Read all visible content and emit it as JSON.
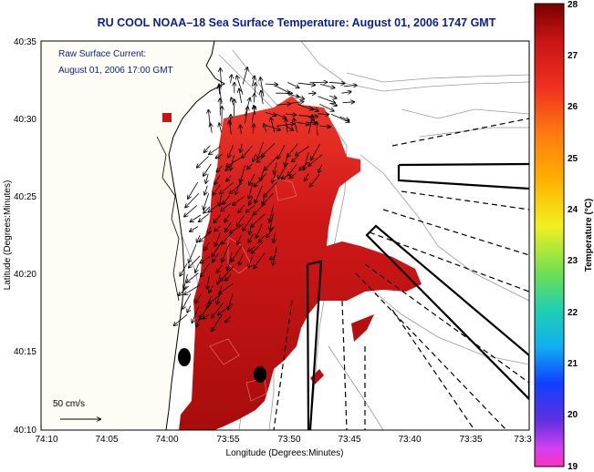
{
  "title": "RU COOL  NOAA–18  Sea Surface Temperature:  August 01, 2006 1747 GMT",
  "current_label_line1": "Raw Surface Current:",
  "current_label_line2": "August 01, 2006 17:00 GMT",
  "scale_label": "50 cm/s",
  "x_axis_label": "Longitude (Degrees:Minutes)",
  "y_axis_label": "Latitude (Degrees:Minutes)",
  "x_ticks": [
    "74:10",
    "74:05",
    "74:00",
    "73:55",
    "73:50",
    "73:45",
    "73:40",
    "73:35",
    "73:3"
  ],
  "y_ticks": [
    "40:35",
    "40:30",
    "40:25",
    "40:20",
    "40:15",
    "40:10"
  ],
  "colorbar": {
    "label": "Temperature (°C)",
    "ticks": [
      "28",
      "27",
      "26",
      "25",
      "24",
      "23",
      "22",
      "21",
      "20",
      "19"
    ]
  },
  "colors": {
    "title": "#0a1f8f",
    "sst_high": "#b01010",
    "sst_warm": "#ee2222",
    "land": "#fdfdf5"
  }
}
